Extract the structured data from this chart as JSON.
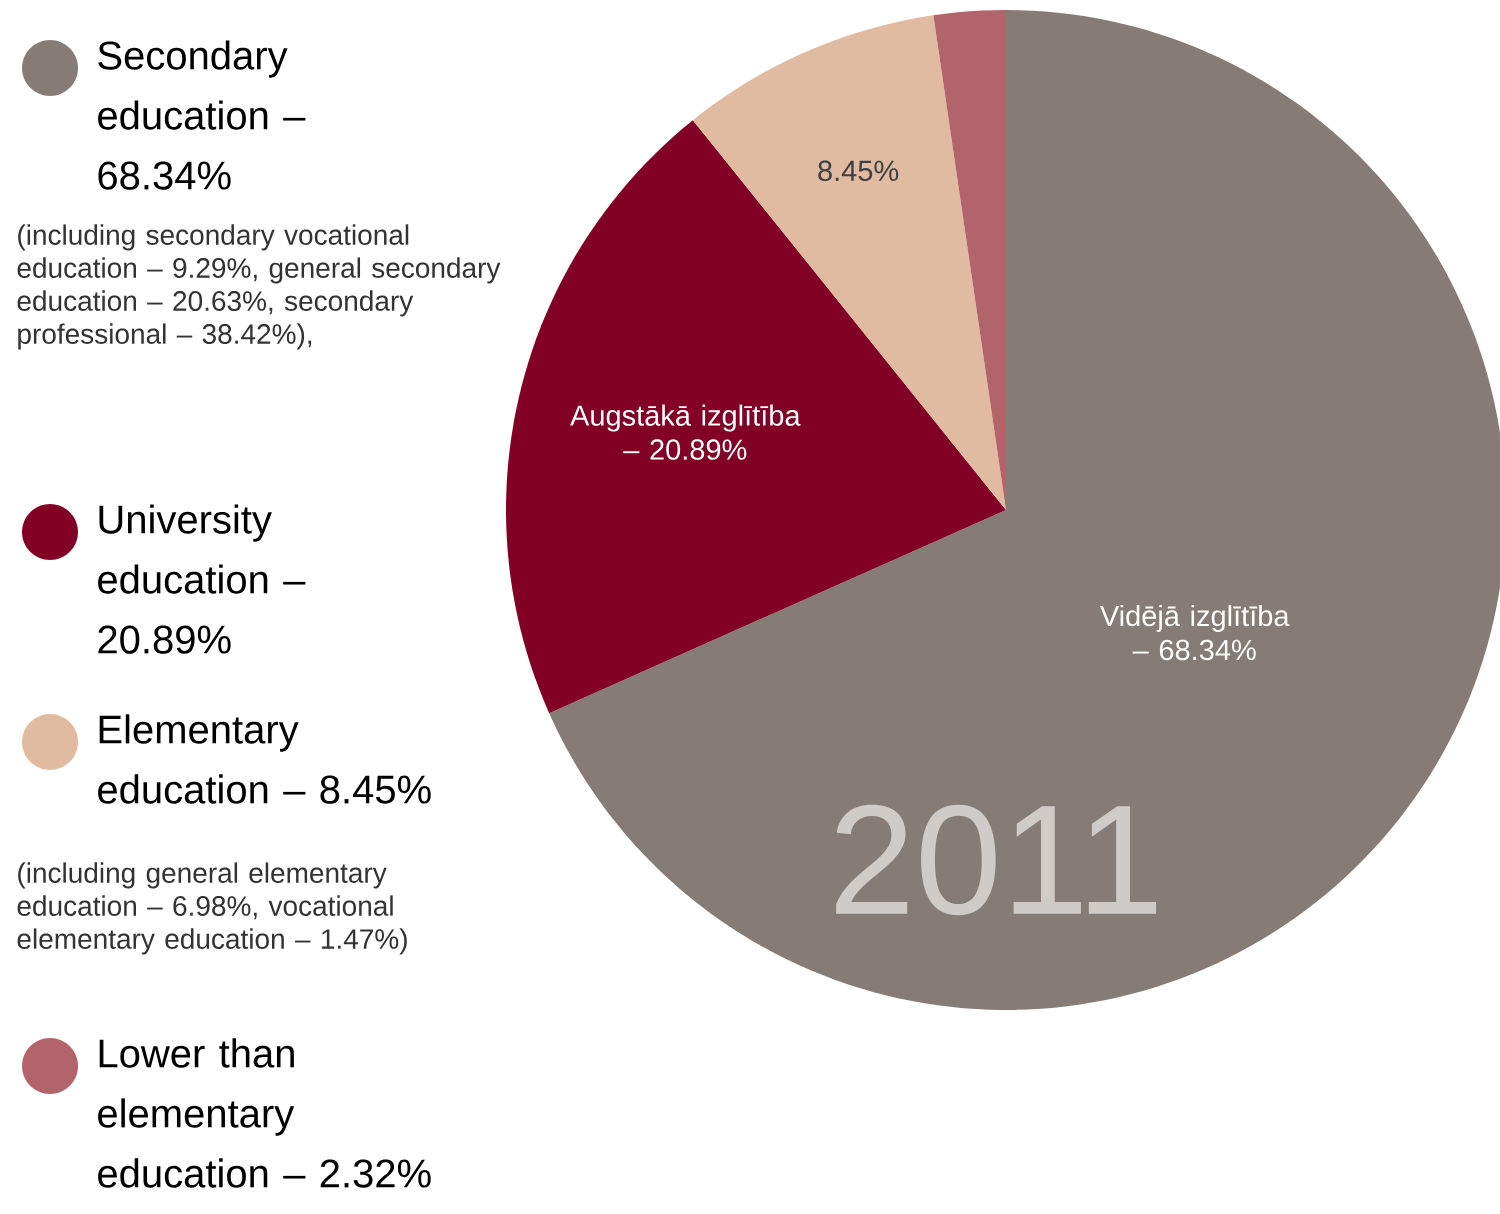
{
  "chart_data": {
    "type": "pie",
    "legend": "left",
    "categories": [
      "Secondary education – 68.34%",
      "University education – 20.89%",
      "Elementary education – 8.45%",
      "Lower than elementary education – 2.32%"
    ],
    "values": [
      68.34,
      20.89,
      8.45,
      2.32
    ],
    "colors": [
      "#867c75",
      "#820026",
      "#e0bba2",
      "#b3636a"
    ],
    "value_labels": [
      null,
      null,
      "8.45%",
      null
    ],
    "annotations": [
      "(including secondary vocational education – 9.29%, general secondary education – 20.63%, secondary professional – 38.42%),",
      "(including general elementary education – 6.98%, vocational elementary education – 1.47%)",
      "2011",
      "Vidējā izglītība – 68.34%",
      "Augstākā izglītība – 20.89%"
    ]
  }
}
